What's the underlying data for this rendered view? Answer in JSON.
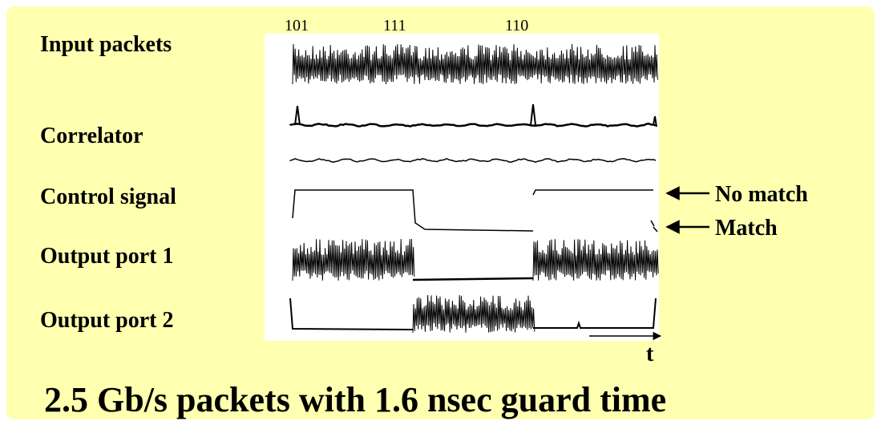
{
  "header": {
    "markers": [
      "101",
      "111",
      "110"
    ]
  },
  "labels": [
    "Input packets",
    "Correlator",
    "Control signal",
    "Output  port 1",
    "Output  port 2"
  ],
  "annotations": {
    "no_match": "No match",
    "match": "Match",
    "time_axis": "t"
  },
  "title": "2.5 Gb/s packets with 1.6 nsec guard time"
}
